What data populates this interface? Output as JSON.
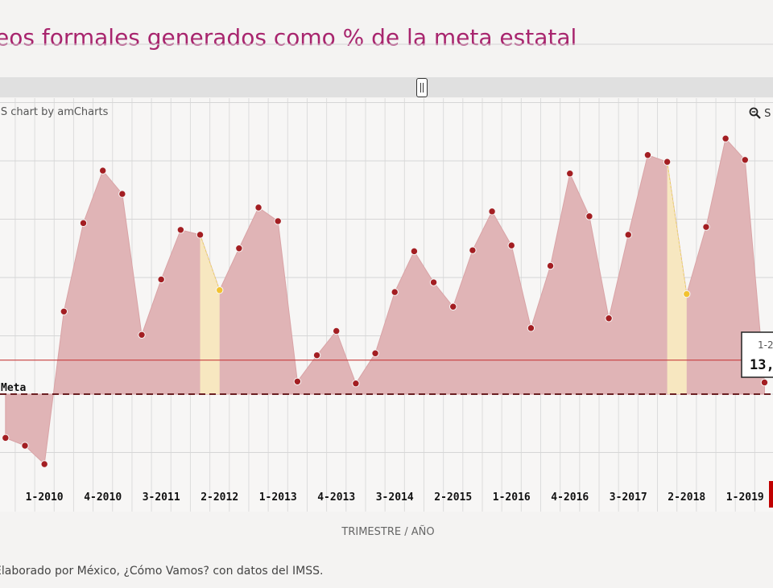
{
  "title": "eos formales generados como % de la meta estatal",
  "credit": "JS chart by amCharts",
  "zoom_label": "S",
  "x_axis_title": "TRIMESTRE / AÑO",
  "footer": "Elaborado por México, ¿Cómo Vamos? con datos del IMSS.",
  "tooltip": {
    "date": "1-2",
    "value": "13,"
  },
  "colors": {
    "title": "#a8256e",
    "area": "#e0b4b6",
    "area_highlight": "#f7e7c0",
    "point": "#a31e22",
    "point_highlight": "#f2c230",
    "meta_line": "#6b1f22",
    "current_line": "#c83c3c",
    "legend_marker": "#c00000"
  },
  "chart_data": {
    "type": "area",
    "x_tick_labels": [
      "1-2010",
      "4-2010",
      "3-2011",
      "2-2012",
      "1-2013",
      "4-2013",
      "3-2014",
      "2-2015",
      "1-2016",
      "4-2016",
      "3-2017",
      "2-2018",
      "1-2019"
    ],
    "reference_line_label": "Meta",
    "reference_value": 100,
    "current_value_line": 135,
    "ylim": [
      -10,
      450
    ],
    "y_gridlines": [
      40,
      100,
      160,
      220,
      280,
      340,
      400,
      460
    ],
    "grid": true,
    "points": [
      {
        "x": -1,
        "y": 55
      },
      {
        "x": 0,
        "y": 47
      },
      {
        "x": 1,
        "y": 28
      },
      {
        "x": 2,
        "y": 185
      },
      {
        "x": 3,
        "y": 276
      },
      {
        "x": 4,
        "y": 330
      },
      {
        "x": 5,
        "y": 306
      },
      {
        "x": 6,
        "y": 161
      },
      {
        "x": 7,
        "y": 218
      },
      {
        "x": 8,
        "y": 269
      },
      {
        "x": 9,
        "y": 264
      },
      {
        "x": 10,
        "y": 207,
        "highlight": true
      },
      {
        "x": 11,
        "y": 250
      },
      {
        "x": 12,
        "y": 292
      },
      {
        "x": 13,
        "y": 278
      },
      {
        "x": 14,
        "y": 113
      },
      {
        "x": 15,
        "y": 140
      },
      {
        "x": 16,
        "y": 165
      },
      {
        "x": 17,
        "y": 111
      },
      {
        "x": 18,
        "y": 142
      },
      {
        "x": 19,
        "y": 205
      },
      {
        "x": 20,
        "y": 247
      },
      {
        "x": 21,
        "y": 215
      },
      {
        "x": 22,
        "y": 190
      },
      {
        "x": 23,
        "y": 248
      },
      {
        "x": 24,
        "y": 288
      },
      {
        "x": 25,
        "y": 253
      },
      {
        "x": 26,
        "y": 168
      },
      {
        "x": 27,
        "y": 232
      },
      {
        "x": 28,
        "y": 327
      },
      {
        "x": 29,
        "y": 283
      },
      {
        "x": 30,
        "y": 178
      },
      {
        "x": 31,
        "y": 264
      },
      {
        "x": 32,
        "y": 346
      },
      {
        "x": 33,
        "y": 339
      },
      {
        "x": 34,
        "y": 203,
        "highlight": true
      },
      {
        "x": 35,
        "y": 272
      },
      {
        "x": 36,
        "y": 363
      },
      {
        "x": 37,
        "y": 341
      },
      {
        "x": 38,
        "y": 112
      }
    ],
    "highlight_bands": [
      [
        9,
        10
      ],
      [
        33,
        34
      ]
    ]
  }
}
